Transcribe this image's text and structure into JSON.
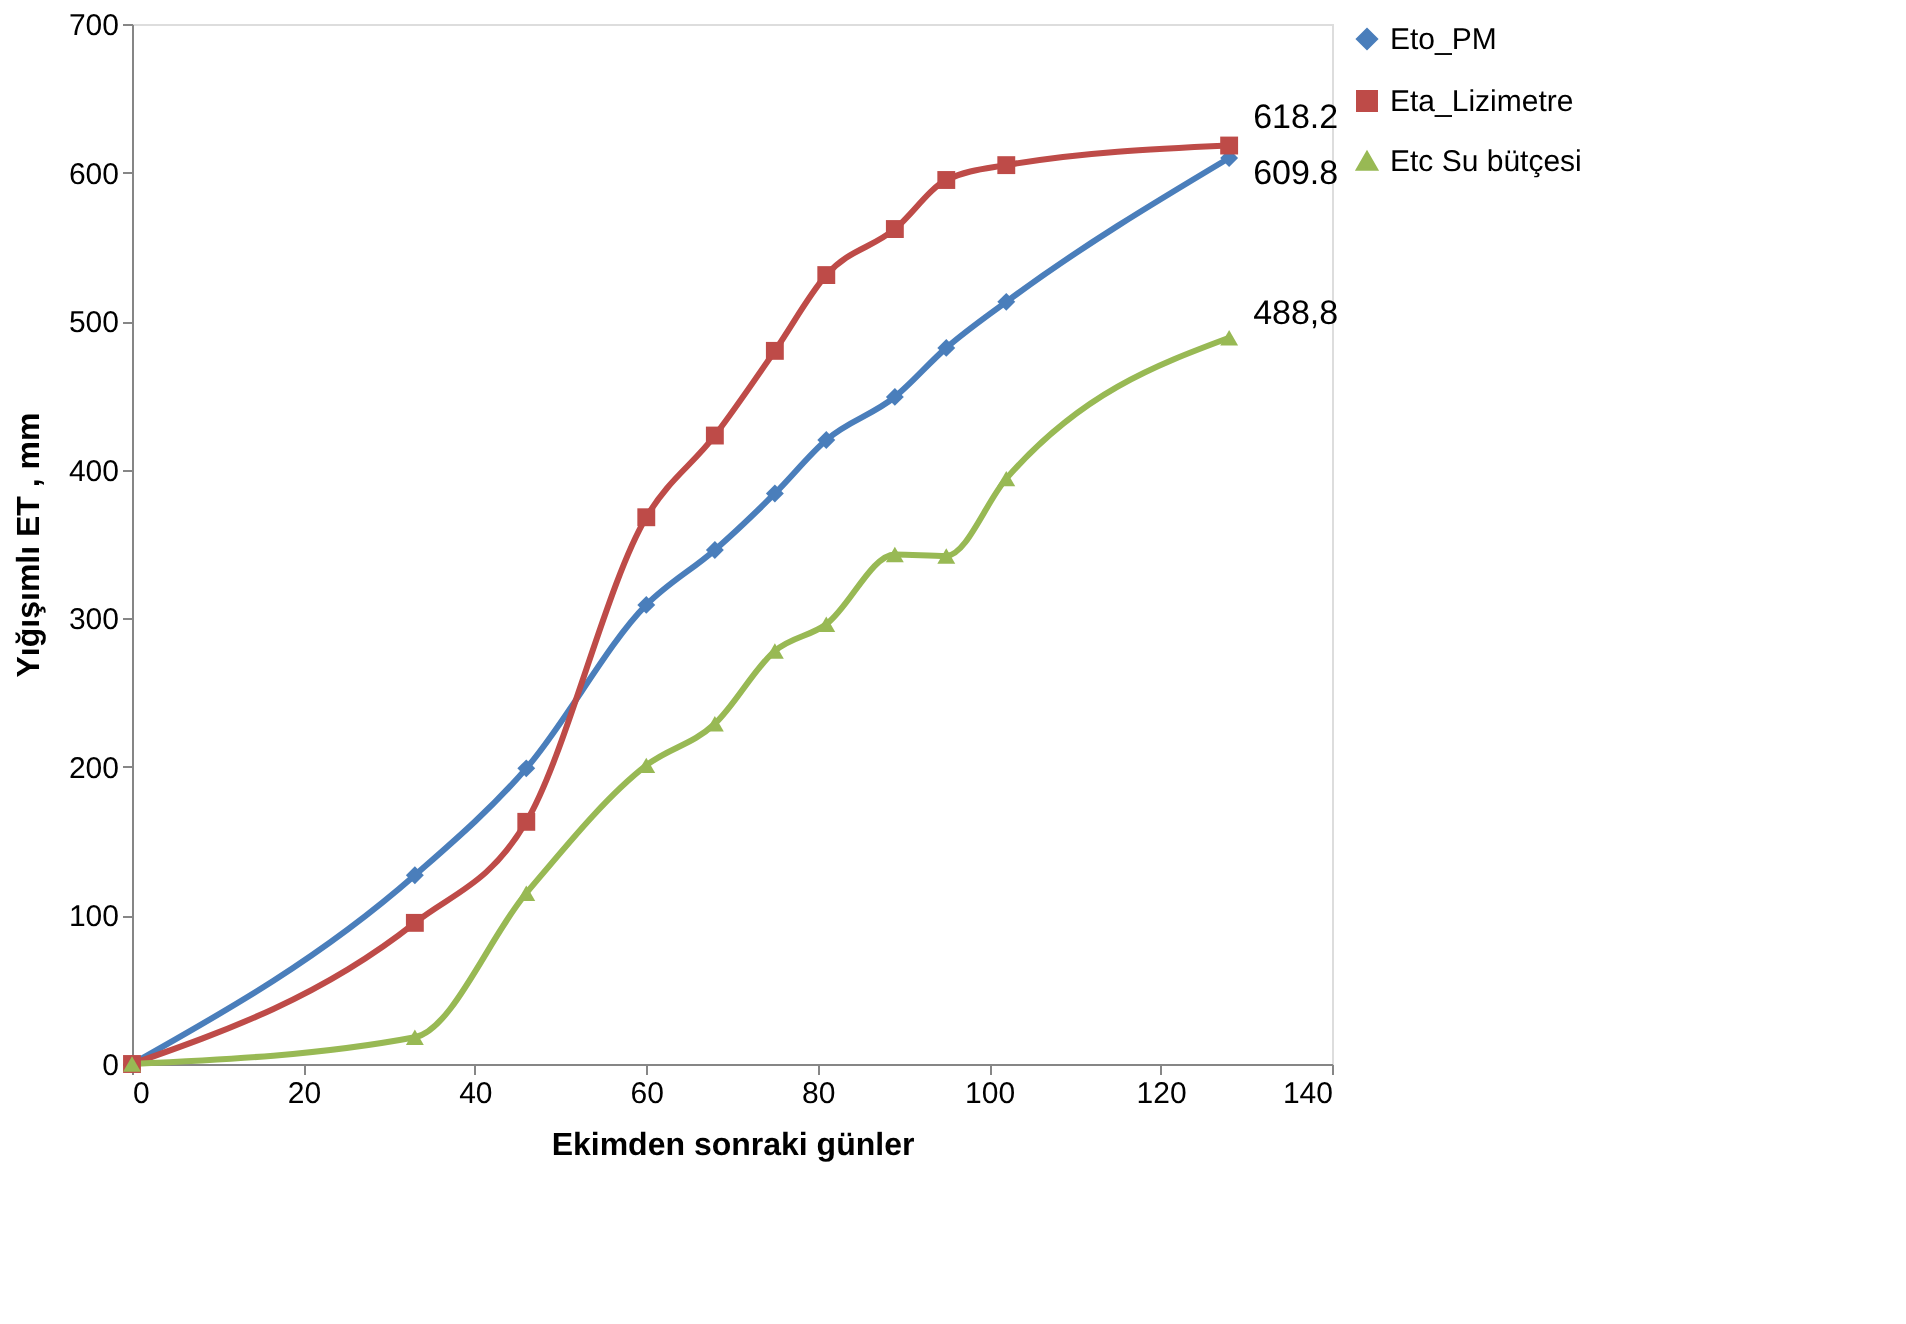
{
  "chart_data": {
    "type": "line",
    "xlabel": "Ekimden sonraki günler",
    "ylabel": "Yığışımlı ET , mm",
    "x": [
      0,
      33,
      46,
      60,
      68,
      75,
      81,
      89,
      95,
      102,
      128
    ],
    "series": [
      {
        "name": "Eto_PM",
        "color": "#4a7ebb",
        "marker": "diamond",
        "values": [
          0,
          127,
          199,
          309,
          346,
          384,
          420,
          449,
          482,
          513,
          609.8
        ],
        "value_labels": [
          null,
          null,
          null,
          null,
          null,
          null,
          null,
          null,
          null,
          null,
          "609.8"
        ]
      },
      {
        "name": "Eta_Lizimetre",
        "color": "#be4b48",
        "marker": "square",
        "values": [
          0,
          95,
          163,
          368,
          423,
          480,
          531,
          562,
          595,
          605,
          618.2
        ],
        "value_labels": [
          null,
          null,
          null,
          null,
          null,
          null,
          null,
          null,
          null,
          null,
          "618.2"
        ]
      },
      {
        "name": "Etc Su bütçesi",
        "color": "#98b954",
        "marker": "triangle",
        "values": [
          0,
          18,
          115,
          201,
          229,
          278,
          296,
          343,
          342,
          394,
          488.8
        ],
        "value_labels": [
          null,
          null,
          null,
          null,
          null,
          null,
          null,
          null,
          null,
          null,
          "488,8"
        ]
      }
    ],
    "xlim": [
      0,
      140
    ],
    "xticks": [
      0,
      20,
      40,
      60,
      80,
      100,
      120,
      140
    ],
    "ylim": [
      0,
      700
    ],
    "yticks": [
      0,
      100,
      200,
      300,
      400,
      500,
      600,
      700
    ],
    "grid": false,
    "legend": "right"
  }
}
